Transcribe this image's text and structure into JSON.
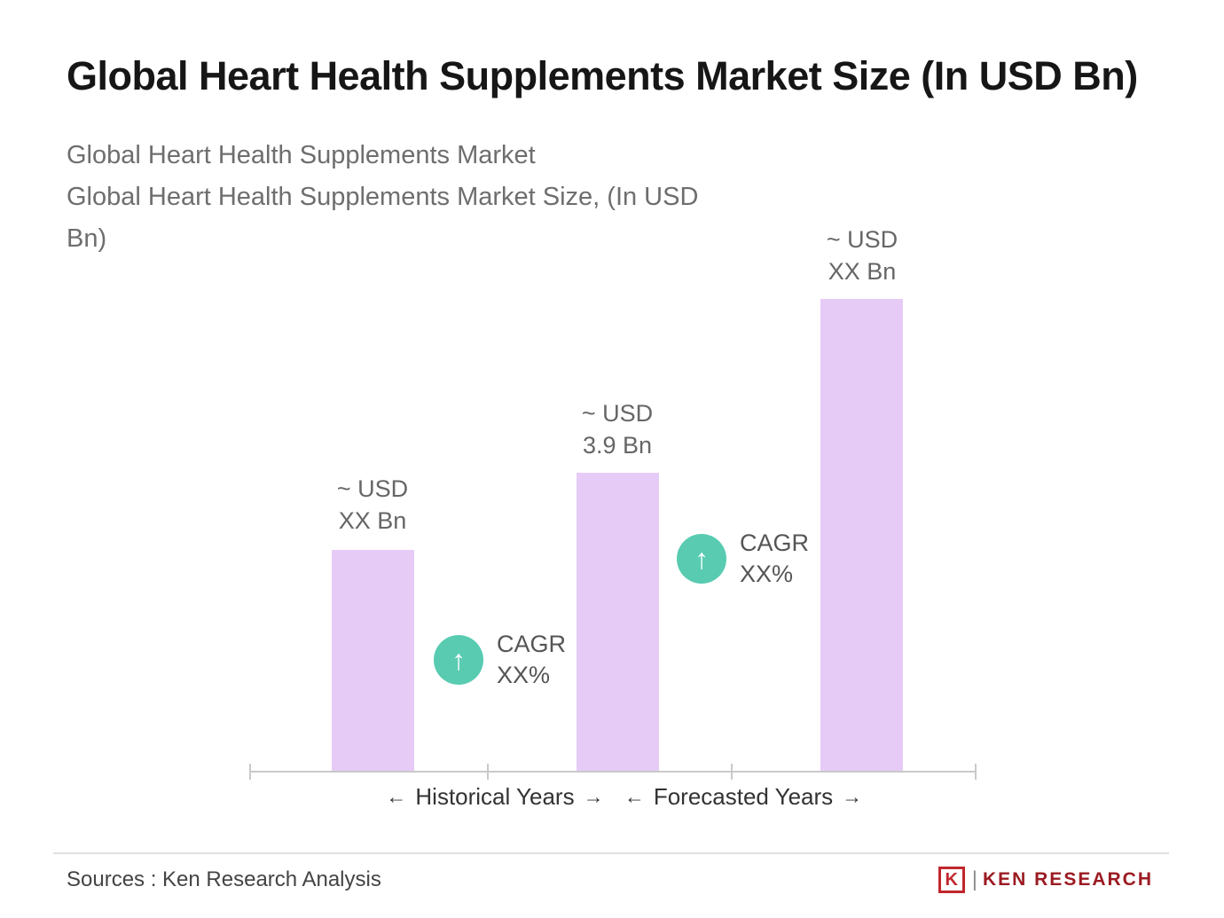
{
  "page": {
    "title": "Global Heart Health Supplements Market Size (In USD Bn)",
    "subtitle_line1": "Global Heart Health Supplements Market",
    "subtitle_line2": "Global Heart Health Supplements Market Size, (In USD Bn)"
  },
  "chart_data": {
    "type": "bar",
    "title": "Global Heart Health Supplements Market Size (In USD Bn)",
    "bars": [
      {
        "value_label": "~ USD\nXX Bn",
        "value": null,
        "relative_height": 0.469
      },
      {
        "value_label": "~ USD\n3.9 Bn",
        "value": 3.9,
        "relative_height": 0.632
      },
      {
        "value_label": "~ USD\nXX Bn",
        "value": null,
        "relative_height": 1.0
      }
    ],
    "annotations": [
      {
        "icon": "up-arrow-in-circle",
        "icon_glyph": "↑",
        "label": "CAGR\nXX%",
        "between_bars": [
          1,
          2
        ]
      },
      {
        "icon": "up-arrow-in-circle",
        "icon_glyph": "↑",
        "label": "CAGR\nXX%",
        "between_bars": [
          2,
          3
        ]
      }
    ],
    "x_axis_segments": [
      {
        "arrow_left": "←",
        "label": "Historical Years",
        "arrow_right": "→"
      },
      {
        "arrow_left": "←",
        "label": "Forecasted Years",
        "arrow_right": "→"
      }
    ],
    "bar_color": "#e6cbf7",
    "annotation_icon_color": "#58cbb1",
    "grid": false,
    "legend": false,
    "y_axis_visible": false
  },
  "footer": {
    "sources": "Sources : Ken Research Analysis",
    "logo_letter": "K",
    "logo_separator": "|",
    "logo_text": "KEN RESEARCH"
  }
}
